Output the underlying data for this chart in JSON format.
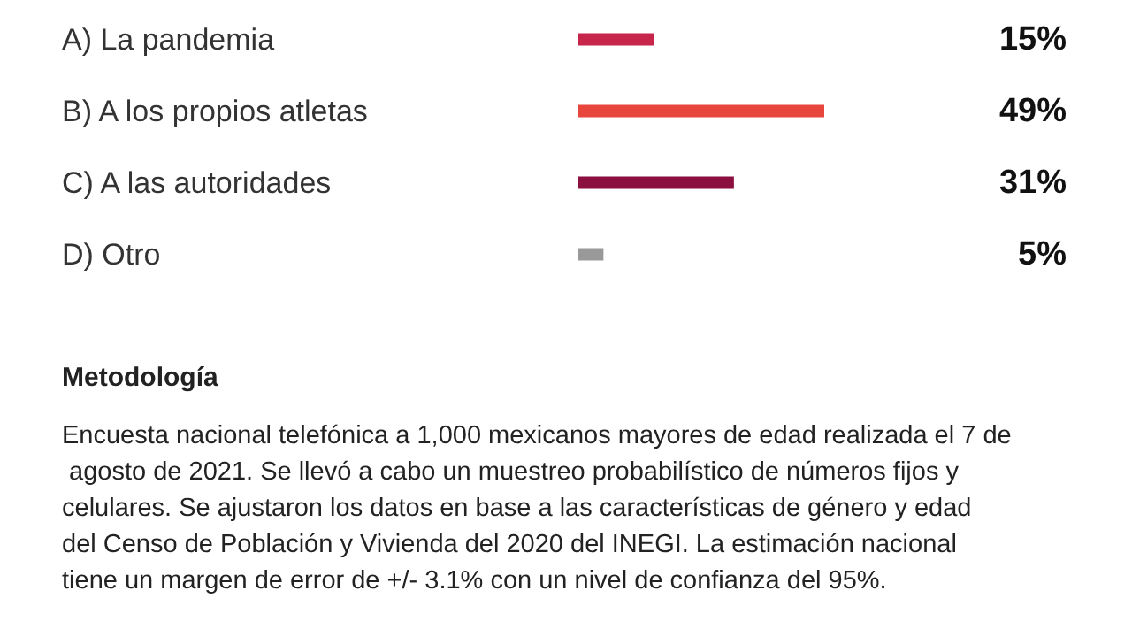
{
  "chart_data": {
    "type": "bar",
    "orientation": "horizontal",
    "categories": [
      "A) La pandemia",
      "B) A los propios atletas",
      "C) A las autoridades",
      "D) Otro"
    ],
    "values": [
      15,
      49,
      31,
      5
    ],
    "colors": [
      "#c8254a",
      "#e8453c",
      "#8b0f3f",
      "#999999"
    ],
    "value_labels": [
      "15%",
      "49%",
      "31%",
      "5%"
    ],
    "annotations": [
      "Metodología",
      "Encuesta nacional telefónica a 1,000 mexicanos mayores de edad realizada el 7 de agosto de 2021. Se llevó a cabo un muestreo probabilístico de números fijos y celulares. Se ajustaron los datos en base a las características de género y edad del Censo de Población y Vivienda del 2020 del INEGI. La estimación nacional tiene un margen de error de +/- 3.1% con un nivel de confianza del 95%."
    ]
  }
}
